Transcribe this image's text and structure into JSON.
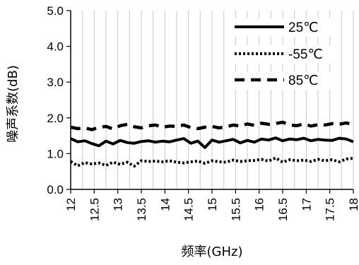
{
  "chart_data": {
    "type": "line",
    "xlabel": "频率(GHz)",
    "ylabel": "噪声系数(dB)",
    "xlim": [
      12,
      18
    ],
    "ylim": [
      0,
      5
    ],
    "x_ticks": [
      "12",
      "12.5",
      "13",
      "13.5",
      "14",
      "14.5",
      "15",
      "15.5",
      "16",
      "16.5",
      "17",
      "17.5",
      "18"
    ],
    "y_ticks": [
      "0.0",
      "1.0",
      "2.0",
      "3.0",
      "4.0",
      "5.0"
    ],
    "grid": "vertical",
    "legend_position": "top-right",
    "x": [
      12.0,
      12.15,
      12.3,
      12.45,
      12.6,
      12.75,
      12.9,
      13.05,
      13.2,
      13.35,
      13.5,
      13.65,
      13.8,
      13.95,
      14.1,
      14.25,
      14.4,
      14.55,
      14.7,
      14.85,
      15.0,
      15.15,
      15.3,
      15.45,
      15.6,
      15.75,
      15.9,
      16.05,
      16.2,
      16.35,
      16.5,
      16.65,
      16.8,
      16.95,
      17.1,
      17.25,
      17.4,
      17.55,
      17.7,
      17.85,
      18.0
    ],
    "series": [
      {
        "name": "25℃",
        "style": "solid",
        "values": [
          1.42,
          1.33,
          1.36,
          1.28,
          1.22,
          1.35,
          1.27,
          1.37,
          1.31,
          1.29,
          1.34,
          1.36,
          1.32,
          1.35,
          1.33,
          1.38,
          1.42,
          1.29,
          1.35,
          1.17,
          1.38,
          1.32,
          1.36,
          1.4,
          1.3,
          1.37,
          1.32,
          1.41,
          1.38,
          1.44,
          1.36,
          1.41,
          1.39,
          1.43,
          1.36,
          1.4,
          1.38,
          1.37,
          1.43,
          1.41,
          1.33
        ]
      },
      {
        "name": "-55℃",
        "style": "dotted",
        "values": [
          0.78,
          0.66,
          0.75,
          0.71,
          0.74,
          0.67,
          0.76,
          0.7,
          0.76,
          0.65,
          0.8,
          0.78,
          0.79,
          0.77,
          0.8,
          0.76,
          0.74,
          0.77,
          0.79,
          0.73,
          0.8,
          0.77,
          0.76,
          0.82,
          0.78,
          0.8,
          0.81,
          0.84,
          0.79,
          0.88,
          0.76,
          0.83,
          0.8,
          0.82,
          0.78,
          0.84,
          0.8,
          0.83,
          0.77,
          0.85,
          0.87
        ]
      },
      {
        "name": "85℃",
        "style": "dashed",
        "values": [
          1.74,
          1.7,
          1.72,
          1.67,
          1.74,
          1.76,
          1.69,
          1.78,
          1.82,
          1.75,
          1.72,
          1.78,
          1.8,
          1.74,
          1.77,
          1.76,
          1.8,
          1.73,
          1.7,
          1.74,
          1.76,
          1.72,
          1.75,
          1.8,
          1.77,
          1.83,
          1.79,
          1.85,
          1.82,
          1.84,
          1.88,
          1.8,
          1.78,
          1.83,
          1.77,
          1.81,
          1.8,
          1.84,
          1.82,
          1.86,
          1.8
        ]
      }
    ]
  }
}
